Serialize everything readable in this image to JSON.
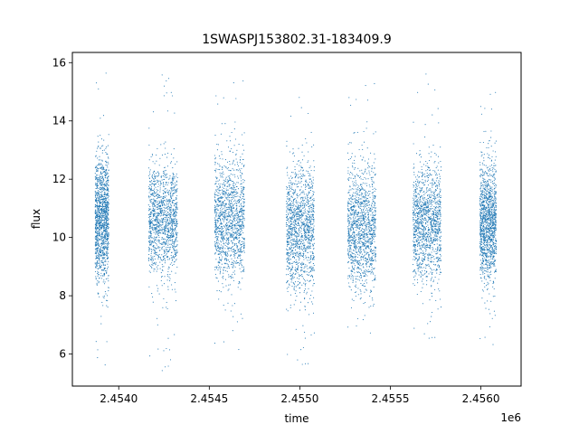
{
  "chart_data": {
    "type": "scatter",
    "title": "1SWASPJ153802.31-183409.9",
    "xlabel": "time",
    "ylabel": "flux",
    "x_offset_label": "1e6",
    "xlim": [
      2453744,
      2456222
    ],
    "ylim": [
      4.9,
      16.35
    ],
    "x_ticks": [
      2454000,
      2454500,
      2455000,
      2455500,
      2456000
    ],
    "x_tick_labels": [
      "2.4540",
      "2.4545",
      "2.4550",
      "2.4555",
      "2.4560"
    ],
    "y_ticks": [
      6,
      8,
      10,
      12,
      14,
      16
    ],
    "y_tick_labels": [
      "6",
      "8",
      "10",
      "12",
      "14",
      "16"
    ],
    "grid": false,
    "marker_color": "#1f77b4",
    "seasons": [
      {
        "x_start": 2453870,
        "x_end": 2453945,
        "center": 10.6,
        "spread": 1.05,
        "ymin": 5.5,
        "ymax": 15.9
      },
      {
        "x_start": 2454165,
        "x_end": 2454325,
        "center": 10.6,
        "spread": 0.9,
        "ymin": 5.4,
        "ymax": 15.9
      },
      {
        "x_start": 2454530,
        "x_end": 2454695,
        "center": 10.6,
        "spread": 1.0,
        "ymin": 5.7,
        "ymax": 15.4
      },
      {
        "x_start": 2454925,
        "x_end": 2455080,
        "center": 10.3,
        "spread": 1.05,
        "ymin": 5.5,
        "ymax": 15.1
      },
      {
        "x_start": 2455265,
        "x_end": 2455420,
        "center": 10.3,
        "spread": 1.0,
        "ymin": 6.3,
        "ymax": 15.3
      },
      {
        "x_start": 2455625,
        "x_end": 2455780,
        "center": 10.5,
        "spread": 0.95,
        "ymin": 6.4,
        "ymax": 15.9
      },
      {
        "x_start": 2455995,
        "x_end": 2456085,
        "center": 10.5,
        "spread": 0.95,
        "ymin": 5.9,
        "ymax": 15.0
      }
    ]
  }
}
